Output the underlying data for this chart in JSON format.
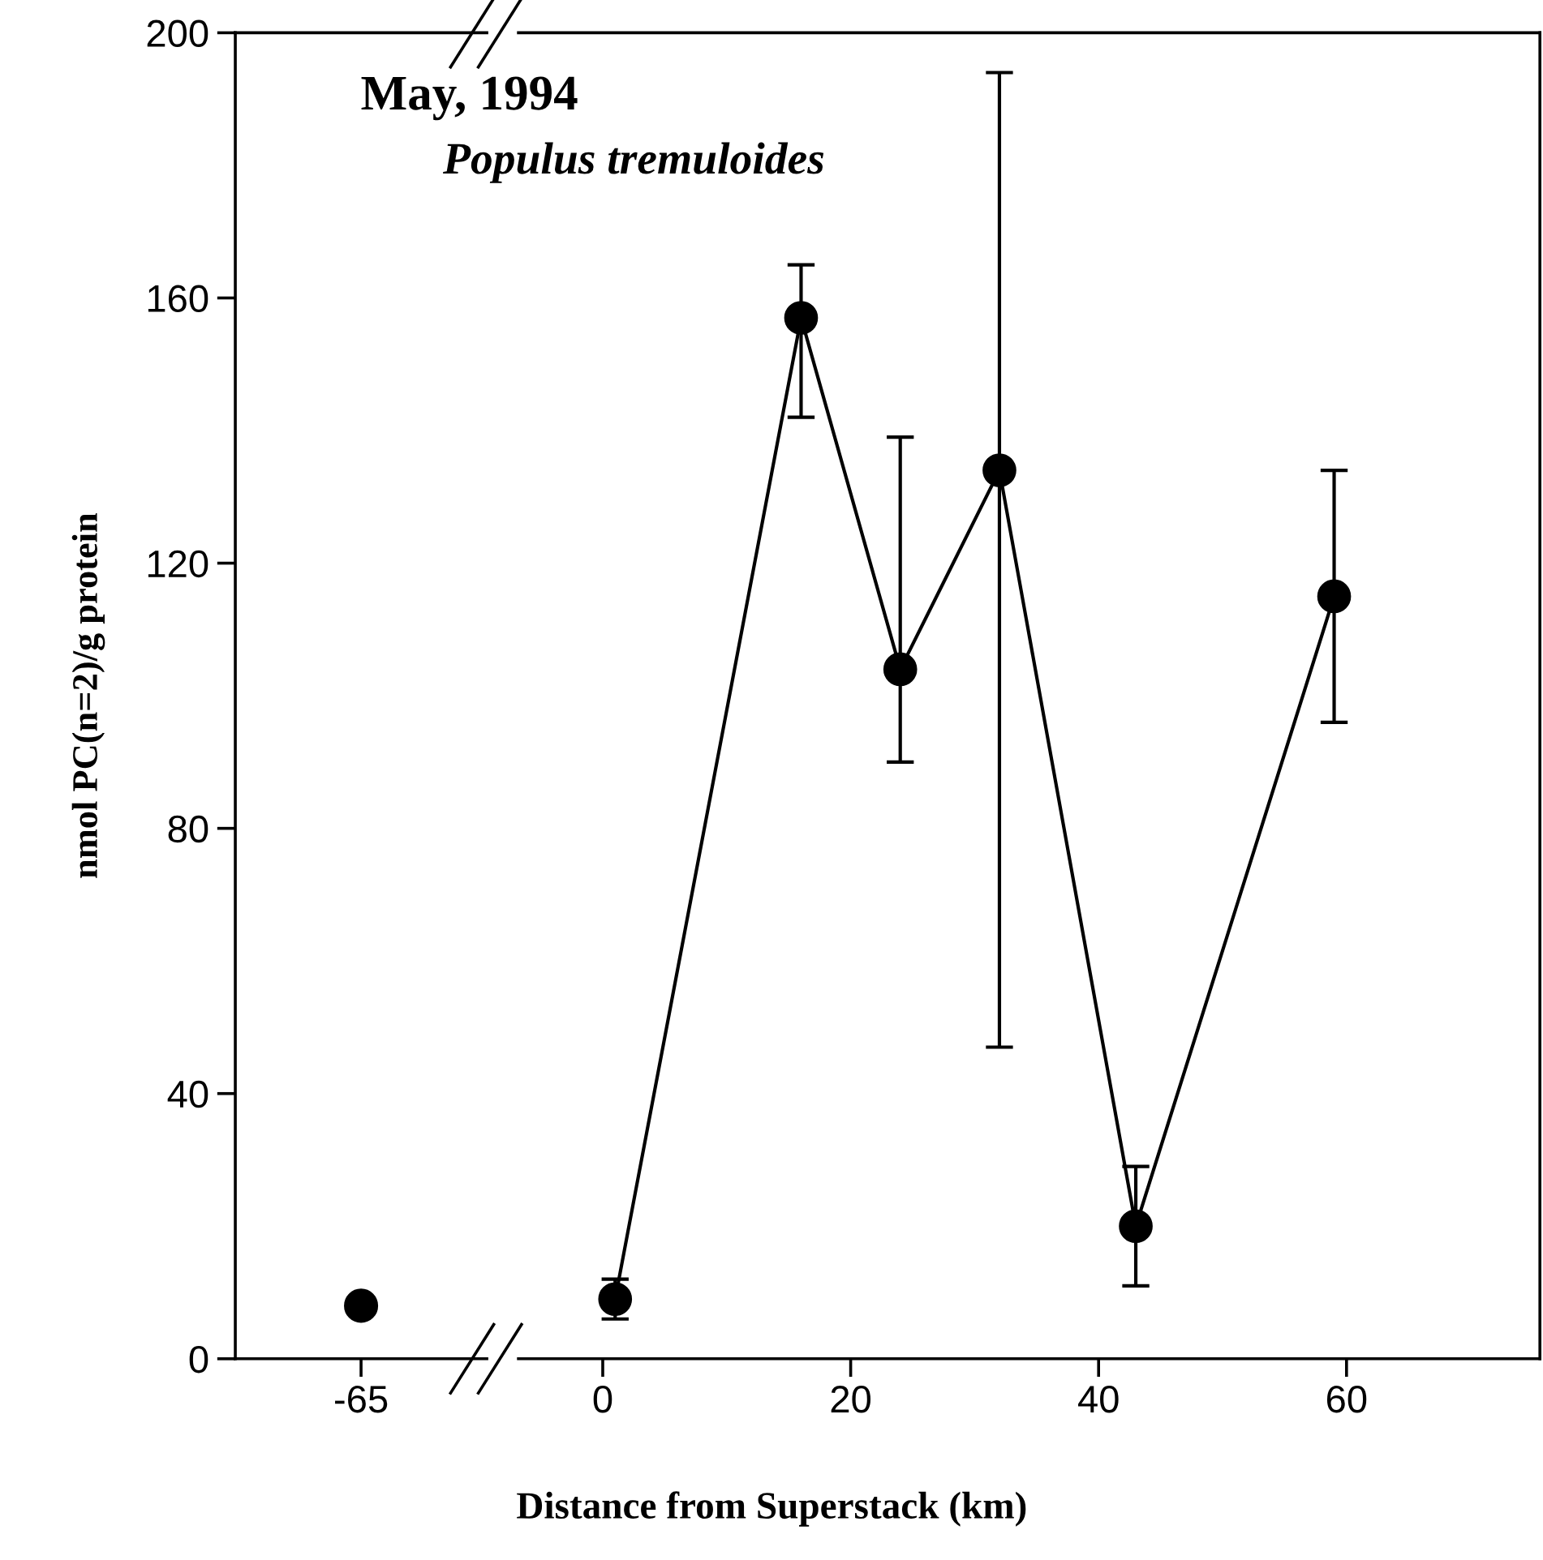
{
  "chart_data": [
    {
      "type": "scatter",
      "ylabel": "nmol PC(n=2)/g protein",
      "categories": [
        "-65"
      ],
      "values": [
        8
      ],
      "color": "#000000",
      "marker": "circle",
      "ylim": [
        0,
        200
      ],
      "yticks": [
        0,
        40,
        80,
        120,
        160,
        200
      ],
      "grid": false
    },
    {
      "type": "line",
      "xlabel": "Distance from Superstack (km)",
      "x": [
        1,
        16,
        24,
        32,
        43,
        59
      ],
      "values": [
        9,
        157,
        104,
        134,
        20,
        115
      ],
      "color": "#000000",
      "marker": "circle",
      "line_style": "solid",
      "errors": [
        [
          6,
          12
        ],
        [
          142,
          165
        ],
        [
          90,
          139
        ],
        [
          47,
          194
        ],
        [
          11,
          29
        ],
        [
          96,
          134
        ]
      ],
      "xlim": [
        -6.8,
        75.6
      ],
      "xticks": [
        0,
        20,
        40,
        60
      ],
      "ylim": [
        0,
        200
      ],
      "tick_labels": "x",
      "grid": false,
      "annotations": [
        "May, 1994",
        "Populus tremuloides"
      ]
    }
  ]
}
